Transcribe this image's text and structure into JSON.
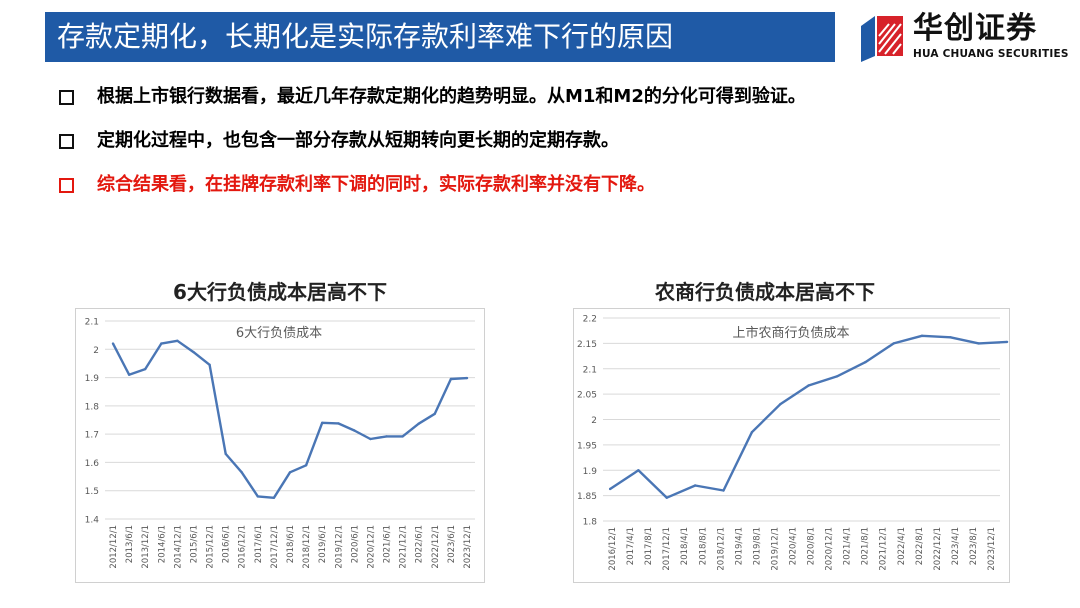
{
  "header": {
    "title": "存款定期化，长期化是实际存款利率难下行的原因",
    "logo_cn": "华创证券",
    "logo_en": "HUA CHUANG SECURITIES"
  },
  "bullets": [
    {
      "text": "根据上市银行数据看，最近几年存款定期化的趋势明显。从M1和M2的分化可得到验证。",
      "color": "#111111"
    },
    {
      "text": "定期化过程中，也包含一部分存款从短期转向更长期的定期存款。",
      "color": "#111111"
    },
    {
      "text": "综合结果看，在挂牌存款利率下调的同时，实际存款利率并没有下降。",
      "color": "#e3180f"
    }
  ],
  "charts": {
    "left_title": "6大行负债成本居高不下",
    "right_title": "农商行负债成本居高不下"
  },
  "chart_data": [
    {
      "type": "line",
      "title": "6大行负债成本",
      "x": [
        "2012/12/1",
        "2013/6/1",
        "2013/12/1",
        "2014/6/1",
        "2014/12/1",
        "2015/6/1",
        "2015/12/1",
        "2016/6/1",
        "2016/12/1",
        "2017/6/1",
        "2017/12/1",
        "2018/6/1",
        "2018/12/1",
        "2019/6/1",
        "2019/12/1",
        "2020/6/1",
        "2020/12/1",
        "2021/6/1",
        "2021/12/1",
        "2022/6/1",
        "2022/12/1",
        "2023/6/1",
        "2023/12/1"
      ],
      "values": [
        2.02,
        1.91,
        1.93,
        2.02,
        2.03,
        1.99,
        1.945,
        1.63,
        1.565,
        1.48,
        1.475,
        1.565,
        1.59,
        1.74,
        1.738,
        1.713,
        1.683,
        1.692,
        1.692,
        1.737,
        1.772,
        1.895,
        1.898
      ],
      "ylim": [
        1.4,
        2.1
      ],
      "yticks": [
        1.4,
        1.5,
        1.6,
        1.7,
        1.8,
        1.9,
        2.0,
        2.1
      ],
      "ytick_labels": [
        "1.4",
        "1.5",
        "1.6",
        "1.7",
        "1.8",
        "1.9",
        "2",
        "2.1"
      ],
      "grid": true,
      "color": "#4a76b5"
    },
    {
      "type": "line",
      "title": "上市农商行负债成本",
      "x": [
        "2016/12/1",
        "2017/4/1",
        "2017/8/1",
        "2017/12/1",
        "2018/4/1",
        "2018/8/1",
        "2018/12/1",
        "2019/4/1",
        "2019/8/1",
        "2019/12/1",
        "2020/4/1",
        "2020/8/1",
        "2020/12/1",
        "2021/4/1",
        "2021/8/1",
        "2021/12/1",
        "2022/4/1",
        "2022/8/1",
        "2022/12/1",
        "2023/4/1",
        "2023/8/1",
        "2023/12/1"
      ],
      "points": [
        [
          0,
          1.863
        ],
        [
          2,
          1.9
        ],
        [
          4,
          1.846
        ],
        [
          6,
          1.87
        ],
        [
          8,
          1.86
        ],
        [
          10,
          1.975
        ],
        [
          12,
          2.03
        ],
        [
          14,
          2.067
        ],
        [
          16,
          2.085
        ],
        [
          18,
          2.113
        ],
        [
          20,
          2.15
        ],
        [
          22,
          2.165
        ],
        [
          24,
          2.162
        ],
        [
          26,
          2.15
        ],
        [
          28,
          2.153
        ]
      ],
      "ylim": [
        1.8,
        2.2
      ],
      "yticks": [
        1.8,
        1.85,
        1.9,
        1.95,
        2.0,
        2.05,
        2.1,
        2.15,
        2.2
      ],
      "ytick_labels": [
        "1.8",
        "1.85",
        "1.9",
        "1.95",
        "2",
        "2.05",
        "2.1",
        "2.15",
        "2.2"
      ],
      "grid": true,
      "color": "#4a76b5"
    }
  ]
}
